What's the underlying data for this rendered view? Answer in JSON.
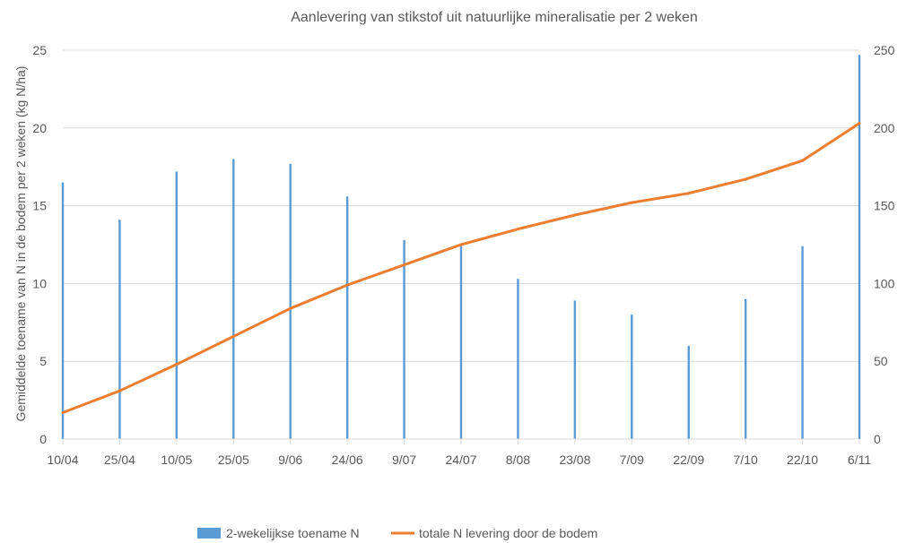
{
  "chart_data": {
    "type": "bar+line",
    "title": "Aanlevering van stikstof uit natuurlijke mineralisatie per 2 weken",
    "ylabel": "Gemiddelde toename van N in de bodem per 2 weken (kg N/ha)",
    "y2label": "",
    "categories": [
      "10/04",
      "25/04",
      "10/05",
      "25/05",
      "9/06",
      "24/06",
      "9/07",
      "24/07",
      "8/08",
      "23/08",
      "7/09",
      "22/09",
      "7/10",
      "22/10",
      "6/11"
    ],
    "ylim": [
      0,
      25
    ],
    "y2lim": [
      0,
      250
    ],
    "yticks": [
      "0",
      "5",
      "10",
      "15",
      "20",
      "25"
    ],
    "y2ticks": [
      "0",
      "50",
      "100",
      "150",
      "200",
      "250"
    ],
    "grid": true,
    "legend_position": "bottom",
    "series": [
      {
        "name": "2-wekelijkse toename N",
        "kind": "bar",
        "axis": "left",
        "color": "#5B9BD5",
        "values": [
          16.5,
          14.1,
          17.2,
          18.0,
          17.7,
          15.6,
          12.8,
          12.5,
          10.3,
          8.9,
          8.0,
          6.0,
          9.0,
          12.4,
          24.7
        ]
      },
      {
        "name": "totale N levering door de bodem",
        "kind": "line",
        "axis": "right",
        "color": "#ED7D31",
        "values": [
          17,
          31,
          48,
          66,
          84,
          99,
          112,
          125,
          135,
          144,
          152,
          158,
          167,
          179,
          203
        ]
      }
    ]
  }
}
